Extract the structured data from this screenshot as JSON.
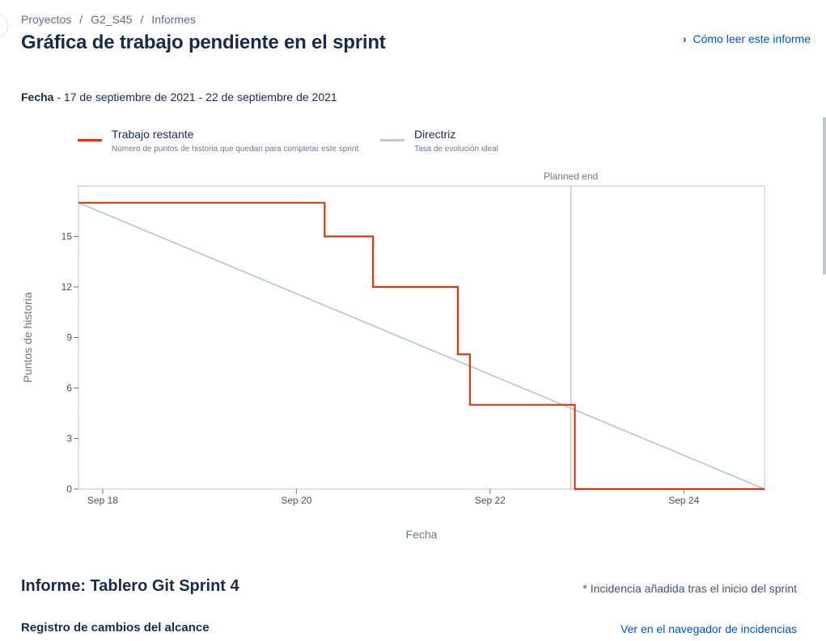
{
  "breadcrumb": [
    "Proyectos",
    "G2_S45",
    "Informes"
  ],
  "page_title": "Gráfica de trabajo pendiente en el sprint",
  "howto_link": "Cómo leer este informe",
  "date_label": "Fecha",
  "date_range": " - 17 de septiembre de 2021 - 22 de septiembre de 2021",
  "legend": [
    {
      "name": "Trabajo restante",
      "desc": "Número de puntos de historia que quedan para completar este sprint",
      "color": "#de350b"
    },
    {
      "name": "Directriz",
      "desc": "Tasa de evolución ideal",
      "color": "#c1c7d0"
    }
  ],
  "chart_data": {
    "type": "line",
    "xlabel": "Fecha",
    "ylabel": "Puntos de historia",
    "x_ticks": [
      "Sep 18",
      "Sep 20",
      "Sep 22",
      "Sep 24"
    ],
    "y_ticks": [
      0,
      3,
      6,
      9,
      12,
      15
    ],
    "xlim": [
      "2021-09-17T18:00",
      "2021-09-24T20:00"
    ],
    "ylim": [
      0,
      18
    ],
    "annotation": {
      "label": "Planned end",
      "x": "2021-09-22T20:00"
    },
    "series": [
      {
        "name": "Trabajo restante",
        "color": "#de350b",
        "step": true,
        "points": [
          {
            "x": "2021-09-17T18:00",
            "y": 17
          },
          {
            "x": "2021-09-20T07:00",
            "y": 15
          },
          {
            "x": "2021-09-20T19:00",
            "y": 12
          },
          {
            "x": "2021-09-21T16:00",
            "y": 8
          },
          {
            "x": "2021-09-21T19:00",
            "y": 5
          },
          {
            "x": "2021-09-22T21:00",
            "y": 0
          },
          {
            "x": "2021-09-24T20:00",
            "y": 0
          }
        ]
      },
      {
        "name": "Directriz",
        "color": "#c1c7d0",
        "step": false,
        "points": [
          {
            "x": "2021-09-17T18:00",
            "y": 17
          },
          {
            "x": "2021-09-24T20:00",
            "y": 0
          }
        ]
      }
    ]
  },
  "report_title": "Informe: Tablero Git Sprint 4",
  "report_note": "* Incidencia añadida tras el inicio del sprint",
  "scope_title": "Registro de cambios del alcance",
  "view_link": "Ver en el navegador de incidencias"
}
